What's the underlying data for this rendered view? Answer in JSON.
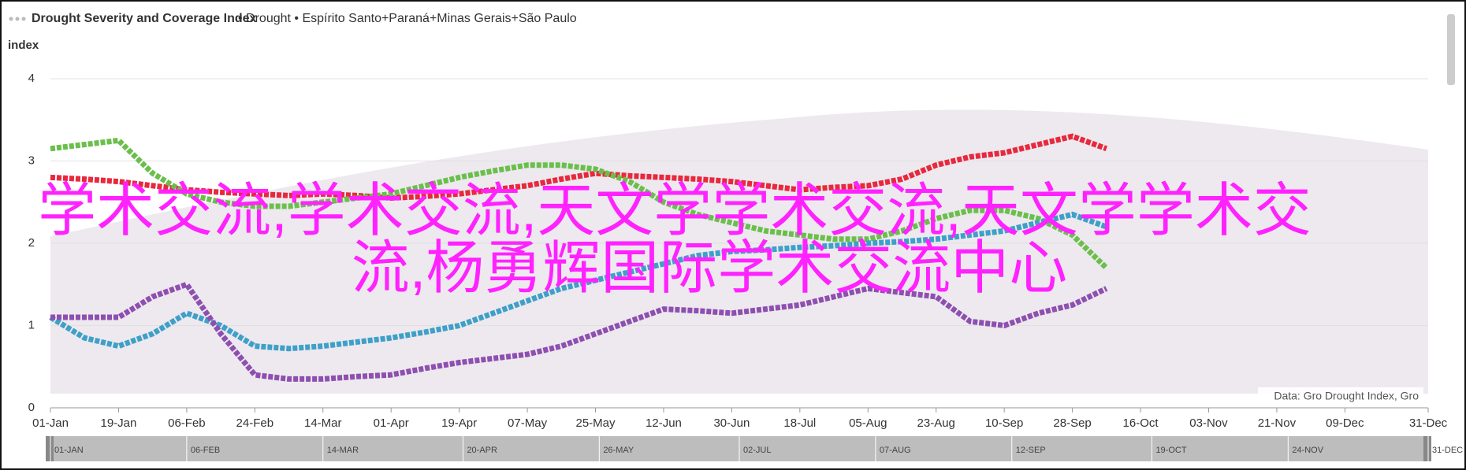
{
  "chart_data": {
    "type": "line",
    "title": "Drought Severity and Coverage Index",
    "subtitle": "• Drought • Espírito Santo+Paraná+Minas Gerais+São Paulo",
    "y_label": "index",
    "credit": "Data: Gro Drought Index, Gro",
    "overlay_text": [
      "学术交流,学术交流,天文学学术交流,天文学学术交",
      "流,杨勇辉国际学术交流中心"
    ],
    "x": [
      0,
      9,
      18,
      27,
      36,
      45,
      54,
      63,
      72,
      81,
      90,
      99,
      108,
      117,
      126,
      135,
      144,
      153,
      162,
      171,
      180,
      189,
      198,
      207,
      216,
      225,
      234,
      243,
      252,
      261,
      270,
      279
    ],
    "series": [
      {
        "color": "#e8283c",
        "values": [
          2.8,
          2.78,
          2.75,
          2.7,
          2.65,
          2.62,
          2.6,
          2.58,
          2.6,
          2.58,
          2.55,
          2.57,
          2.6,
          2.65,
          2.7,
          2.78,
          2.85,
          2.82,
          2.8,
          2.78,
          2.75,
          2.7,
          2.65,
          2.68,
          2.7,
          2.78,
          2.95,
          3.05,
          3.1,
          3.2,
          3.3,
          3.15
        ]
      },
      {
        "color": "#6abf4b",
        "values": [
          3.15,
          3.2,
          3.25,
          2.85,
          2.6,
          2.5,
          2.45,
          2.45,
          2.5,
          2.55,
          2.6,
          2.7,
          2.8,
          2.88,
          2.95,
          2.95,
          2.9,
          2.75,
          2.5,
          2.35,
          2.25,
          2.15,
          2.1,
          2.05,
          2.05,
          2.15,
          2.3,
          2.4,
          2.4,
          2.3,
          2.1,
          1.7
        ]
      },
      {
        "color": "#3ea0c8",
        "values": [
          1.1,
          0.85,
          0.75,
          0.9,
          1.15,
          1.0,
          0.75,
          0.72,
          0.75,
          0.8,
          0.85,
          0.92,
          1.0,
          1.15,
          1.3,
          1.45,
          1.55,
          1.65,
          1.75,
          1.85,
          1.9,
          1.92,
          1.95,
          1.97,
          2.0,
          2.02,
          2.05,
          2.1,
          2.15,
          2.25,
          2.35,
          2.2
        ]
      },
      {
        "color": "#8e4fb0",
        "values": [
          1.1,
          1.1,
          1.1,
          1.35,
          1.5,
          0.9,
          0.4,
          0.35,
          0.35,
          0.38,
          0.4,
          0.48,
          0.55,
          0.6,
          0.65,
          0.75,
          0.9,
          1.05,
          1.2,
          1.18,
          1.15,
          1.2,
          1.25,
          1.35,
          1.45,
          1.4,
          1.35,
          1.05,
          1.0,
          1.15,
          1.25,
          1.45
        ]
      }
    ],
    "xlim": [
      0,
      364
    ],
    "xticks": [
      {
        "value": 0,
        "label": "01-Jan"
      },
      {
        "value": 18,
        "label": "19-Jan"
      },
      {
        "value": 36,
        "label": "06-Feb"
      },
      {
        "value": 54,
        "label": "24-Feb"
      },
      {
        "value": 72,
        "label": "14-Mar"
      },
      {
        "value": 90,
        "label": "01-Apr"
      },
      {
        "value": 108,
        "label": "19-Apr"
      },
      {
        "value": 126,
        "label": "07-May"
      },
      {
        "value": 144,
        "label": "25-May"
      },
      {
        "value": 162,
        "label": "12-Jun"
      },
      {
        "value": 180,
        "label": "30-Jun"
      },
      {
        "value": 198,
        "label": "18-Jul"
      },
      {
        "value": 216,
        "label": "05-Aug"
      },
      {
        "value": 234,
        "label": "23-Aug"
      },
      {
        "value": 252,
        "label": "10-Sep"
      },
      {
        "value": 270,
        "label": "28-Sep"
      },
      {
        "value": 288,
        "label": "16-Oct"
      },
      {
        "value": 306,
        "label": "03-Nov"
      },
      {
        "value": 324,
        "label": "21-Nov"
      },
      {
        "value": 342,
        "label": "09-Dec"
      },
      {
        "value": 364,
        "label": "31-Dec"
      }
    ],
    "navigator_ticks": [
      {
        "value": 0,
        "label": "01-JAN"
      },
      {
        "value": 36,
        "label": "06-FEB"
      },
      {
        "value": 72,
        "label": "14-MAR"
      },
      {
        "value": 109,
        "label": "20-APR"
      },
      {
        "value": 145,
        "label": "26-MAY"
      },
      {
        "value": 182,
        "label": "02-JUL"
      },
      {
        "value": 218,
        "label": "07-AUG"
      },
      {
        "value": 254,
        "label": "12-SEP"
      },
      {
        "value": 291,
        "label": "19-OCT"
      },
      {
        "value": 327,
        "label": "24-NOV"
      },
      {
        "value": 364,
        "label": "31-DEC"
      }
    ],
    "ylim": [
      0,
      4
    ],
    "yticks": [
      0,
      1,
      2,
      3,
      4
    ],
    "grid": true
  }
}
